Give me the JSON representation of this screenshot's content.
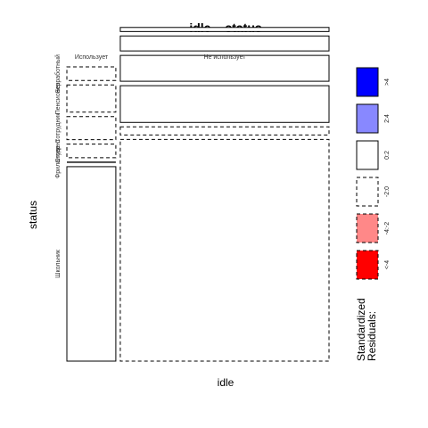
{
  "chart_data": {
    "type": "mosaic",
    "title": "idle ~ status",
    "xlabel": "idle",
    "ylabel": "status",
    "x_categories": [
      "Использует",
      "Не использует"
    ],
    "y_categories": [
      "Школьник",
      "Фрилансер",
      "Студент",
      "Сотрудник",
      "Пенсионер",
      "Безработный"
    ],
    "proportions": {
      "x": [
        0.19,
        0.81
      ],
      "conditional_y": {
        "Использует": [
          0.715,
          0.0,
          0.05,
          0.085,
          0.1,
          0.05
        ],
        "Не использует": [
          0.815,
          0.03,
          0.135,
          0.095,
          0.055,
          0.015
        ]
      }
    },
    "residual_class": {
      "Использует": [
        "0:2",
        "0:2",
        "-2:0",
        "-2:0",
        "-2:0",
        "-2:0"
      ],
      "Не использует": [
        "-2:0",
        "-2:0",
        "0:2",
        "0:2",
        "0:2",
        "0:2"
      ]
    },
    "legend": {
      "title_lines": [
        "Standardized",
        "Residuals:"
      ],
      "entries": [
        {
          "label": ">4",
          "color": "#0000ff",
          "border": "solid"
        },
        {
          "label": "2:4",
          "color": "#8888ff",
          "border": "solid"
        },
        {
          "label": "0:2",
          "color": "#ffffff",
          "border": "solid"
        },
        {
          "label": "-2:0",
          "color": "#ffffff",
          "border": "dashed"
        },
        {
          "label": "-4:-2",
          "color": "#ff8888",
          "border": "dashed"
        },
        {
          "label": "<-4",
          "color": "#ff0000",
          "border": "dashed"
        }
      ]
    }
  }
}
